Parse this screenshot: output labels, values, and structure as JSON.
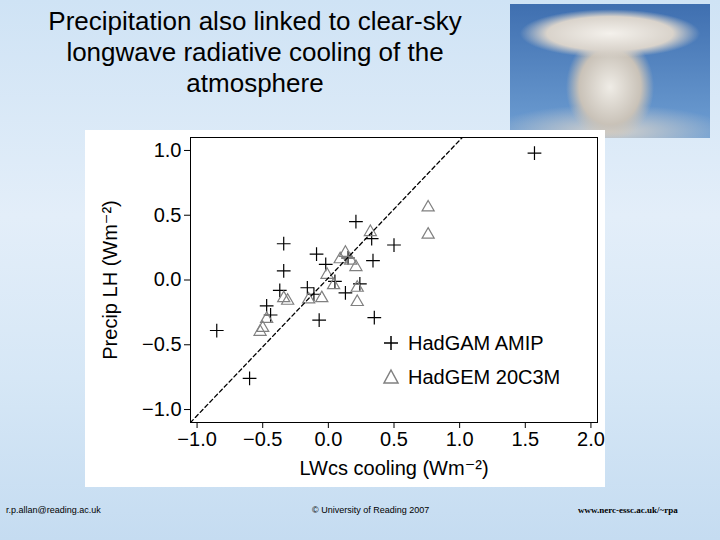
{
  "chart_data": {
    "type": "scatter",
    "title": "Precipitation also linked to clear-sky longwave radiative cooling of the atmosphere",
    "x_label": "LWcs cooling (Wm⁻²)",
    "y_label": "Precip LH (Wm⁻²)",
    "xlim": [
      -1.05,
      2.05
    ],
    "ylim": [
      -1.1,
      1.1
    ],
    "xticks": [
      {
        "value": -1,
        "label": "−1.0"
      },
      {
        "value": -0.5,
        "label": "−0.5"
      },
      {
        "value": 0,
        "label": "0.0"
      },
      {
        "value": 0.5,
        "label": "0.5"
      },
      {
        "value": 1,
        "label": "1.0"
      },
      {
        "value": 1.5,
        "label": "1.5"
      },
      {
        "value": 2,
        "label": "2.0"
      }
    ],
    "yticks": [
      {
        "value": -1,
        "label": "−1.0"
      },
      {
        "value": -0.5,
        "label": "−0.5"
      },
      {
        "value": 0,
        "label": "0.0"
      },
      {
        "value": 0.5,
        "label": "0.5"
      },
      {
        "value": 1,
        "label": "1.0"
      }
    ],
    "legend": "lower right",
    "series": [
      {
        "name": "HadGAM AMIP",
        "type": "scatter",
        "marker": "plus",
        "color": "#000000",
        "x": [
          -0.09,
          0.21,
          0.33,
          0.5,
          0.34,
          0.15,
          -0.02,
          -0.34,
          -0.34,
          -0.37,
          -0.16,
          -0.11,
          0.13,
          0.24,
          -0.47,
          -0.44,
          -0.07,
          0.35,
          1.57,
          -0.85,
          -0.6,
          0.05
        ],
        "values": [
          0.2,
          0.45,
          0.32,
          0.27,
          0.15,
          0.17,
          0.12,
          0.28,
          0.07,
          -0.08,
          -0.06,
          -0.11,
          -0.1,
          -0.03,
          -0.2,
          -0.27,
          -0.31,
          -0.29,
          0.98,
          -0.39,
          -0.76,
          -0.01
        ]
      },
      {
        "name": "HadGEM 20C3M",
        "type": "scatter",
        "marker": "triangle",
        "color": "#808080",
        "x": [
          0.76,
          0.76,
          0.32,
          0.09,
          0.17,
          0.21,
          0.22,
          0.22,
          0.04,
          -0.01,
          -0.15,
          -0.34,
          -0.31,
          -0.47,
          -0.5,
          -0.52,
          0.13,
          -0.05
        ],
        "values": [
          0.56,
          0.35,
          0.37,
          0.16,
          0.15,
          0.1,
          -0.06,
          -0.17,
          -0.04,
          0.04,
          -0.15,
          -0.14,
          -0.16,
          -0.3,
          -0.37,
          -0.4,
          0.21,
          -0.14
        ]
      },
      {
        "type": "line",
        "line_style": "dashed",
        "color": "#000000",
        "x": [
          -1.05,
          1.02
        ],
        "values": [
          -1.1,
          1.1
        ]
      }
    ]
  },
  "footer": {
    "left": "r.p.allan@reading.ac.uk",
    "center": "© University of Reading 2007",
    "right": "www.nerc-essc.ac.uk/~rpa"
  }
}
